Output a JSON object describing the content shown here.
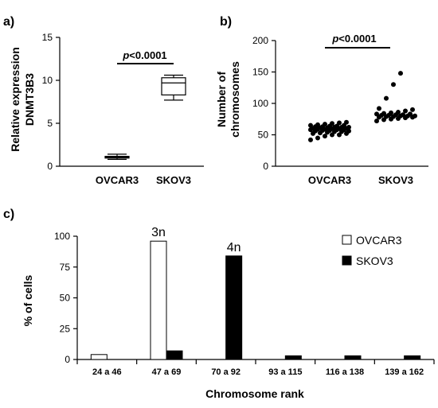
{
  "chart_data": [
    {
      "panel": "a)",
      "type": "boxplot",
      "ylabel_line1": "Relative expression",
      "ylabel_line2": "DNMT3B3",
      "ylim": [
        0,
        15
      ],
      "yticks": [
        0,
        5,
        10,
        15
      ],
      "categories": [
        "OVCAR3",
        "SKOV3"
      ],
      "boxes": [
        {
          "category": "OVCAR3",
          "min": 0.8,
          "q1": 0.95,
          "median": 1.05,
          "q3": 1.15,
          "max": 1.4
        },
        {
          "category": "SKOV3",
          "min": 7.7,
          "q1": 8.3,
          "median": 9.7,
          "q3": 10.3,
          "max": 10.6
        }
      ],
      "significance": {
        "p": "p",
        "rest": "<0.0001"
      }
    },
    {
      "panel": "b)",
      "type": "scatter",
      "ylabel_line1": "Number of",
      "ylabel_line2": "chromosomes",
      "ylim": [
        0,
        200
      ],
      "yticks": [
        0,
        50,
        100,
        150,
        200
      ],
      "categories": [
        "OVCAR3",
        "SKOV3"
      ],
      "points": {
        "OVCAR3": [
          42,
          45,
          48,
          50,
          50,
          52,
          52,
          53,
          54,
          55,
          55,
          56,
          56,
          57,
          57,
          58,
          58,
          58,
          59,
          59,
          60,
          60,
          60,
          60,
          61,
          61,
          62,
          62,
          62,
          63,
          63,
          64,
          64,
          65,
          65,
          66,
          67,
          68,
          69,
          70
        ],
        "SKOV3": [
          72,
          74,
          75,
          76,
          77,
          78,
          78,
          79,
          79,
          80,
          80,
          80,
          81,
          81,
          82,
          82,
          83,
          83,
          84,
          85,
          86,
          88,
          90,
          92,
          108,
          130,
          148
        ]
      },
      "significance": {
        "p": "p",
        "rest": "<0.0001"
      }
    },
    {
      "panel": "c)",
      "type": "bar",
      "ylabel": "% of cells",
      "xlabel": "Chromosome rank",
      "ylim": [
        0,
        100
      ],
      "yticks": [
        0,
        25,
        50,
        75,
        100
      ],
      "categories": [
        "24 a 46",
        "47 a 69",
        "70 a 92",
        "93 a 115",
        "116 a 138",
        "139 a 162"
      ],
      "series": [
        {
          "name": "OVCAR3",
          "color": "#ffffff",
          "values": [
            4,
            96,
            0,
            0,
            0,
            0
          ]
        },
        {
          "name": "SKOV3",
          "color": "#000000",
          "values": [
            0,
            7,
            84,
            3,
            3,
            3
          ]
        }
      ],
      "annotations": [
        {
          "text": "3n",
          "category": "47 a 69",
          "series": "OVCAR3"
        },
        {
          "text": "4n",
          "category": "70 a 92",
          "series": "SKOV3"
        }
      ],
      "legend_position": "top-right"
    }
  ]
}
